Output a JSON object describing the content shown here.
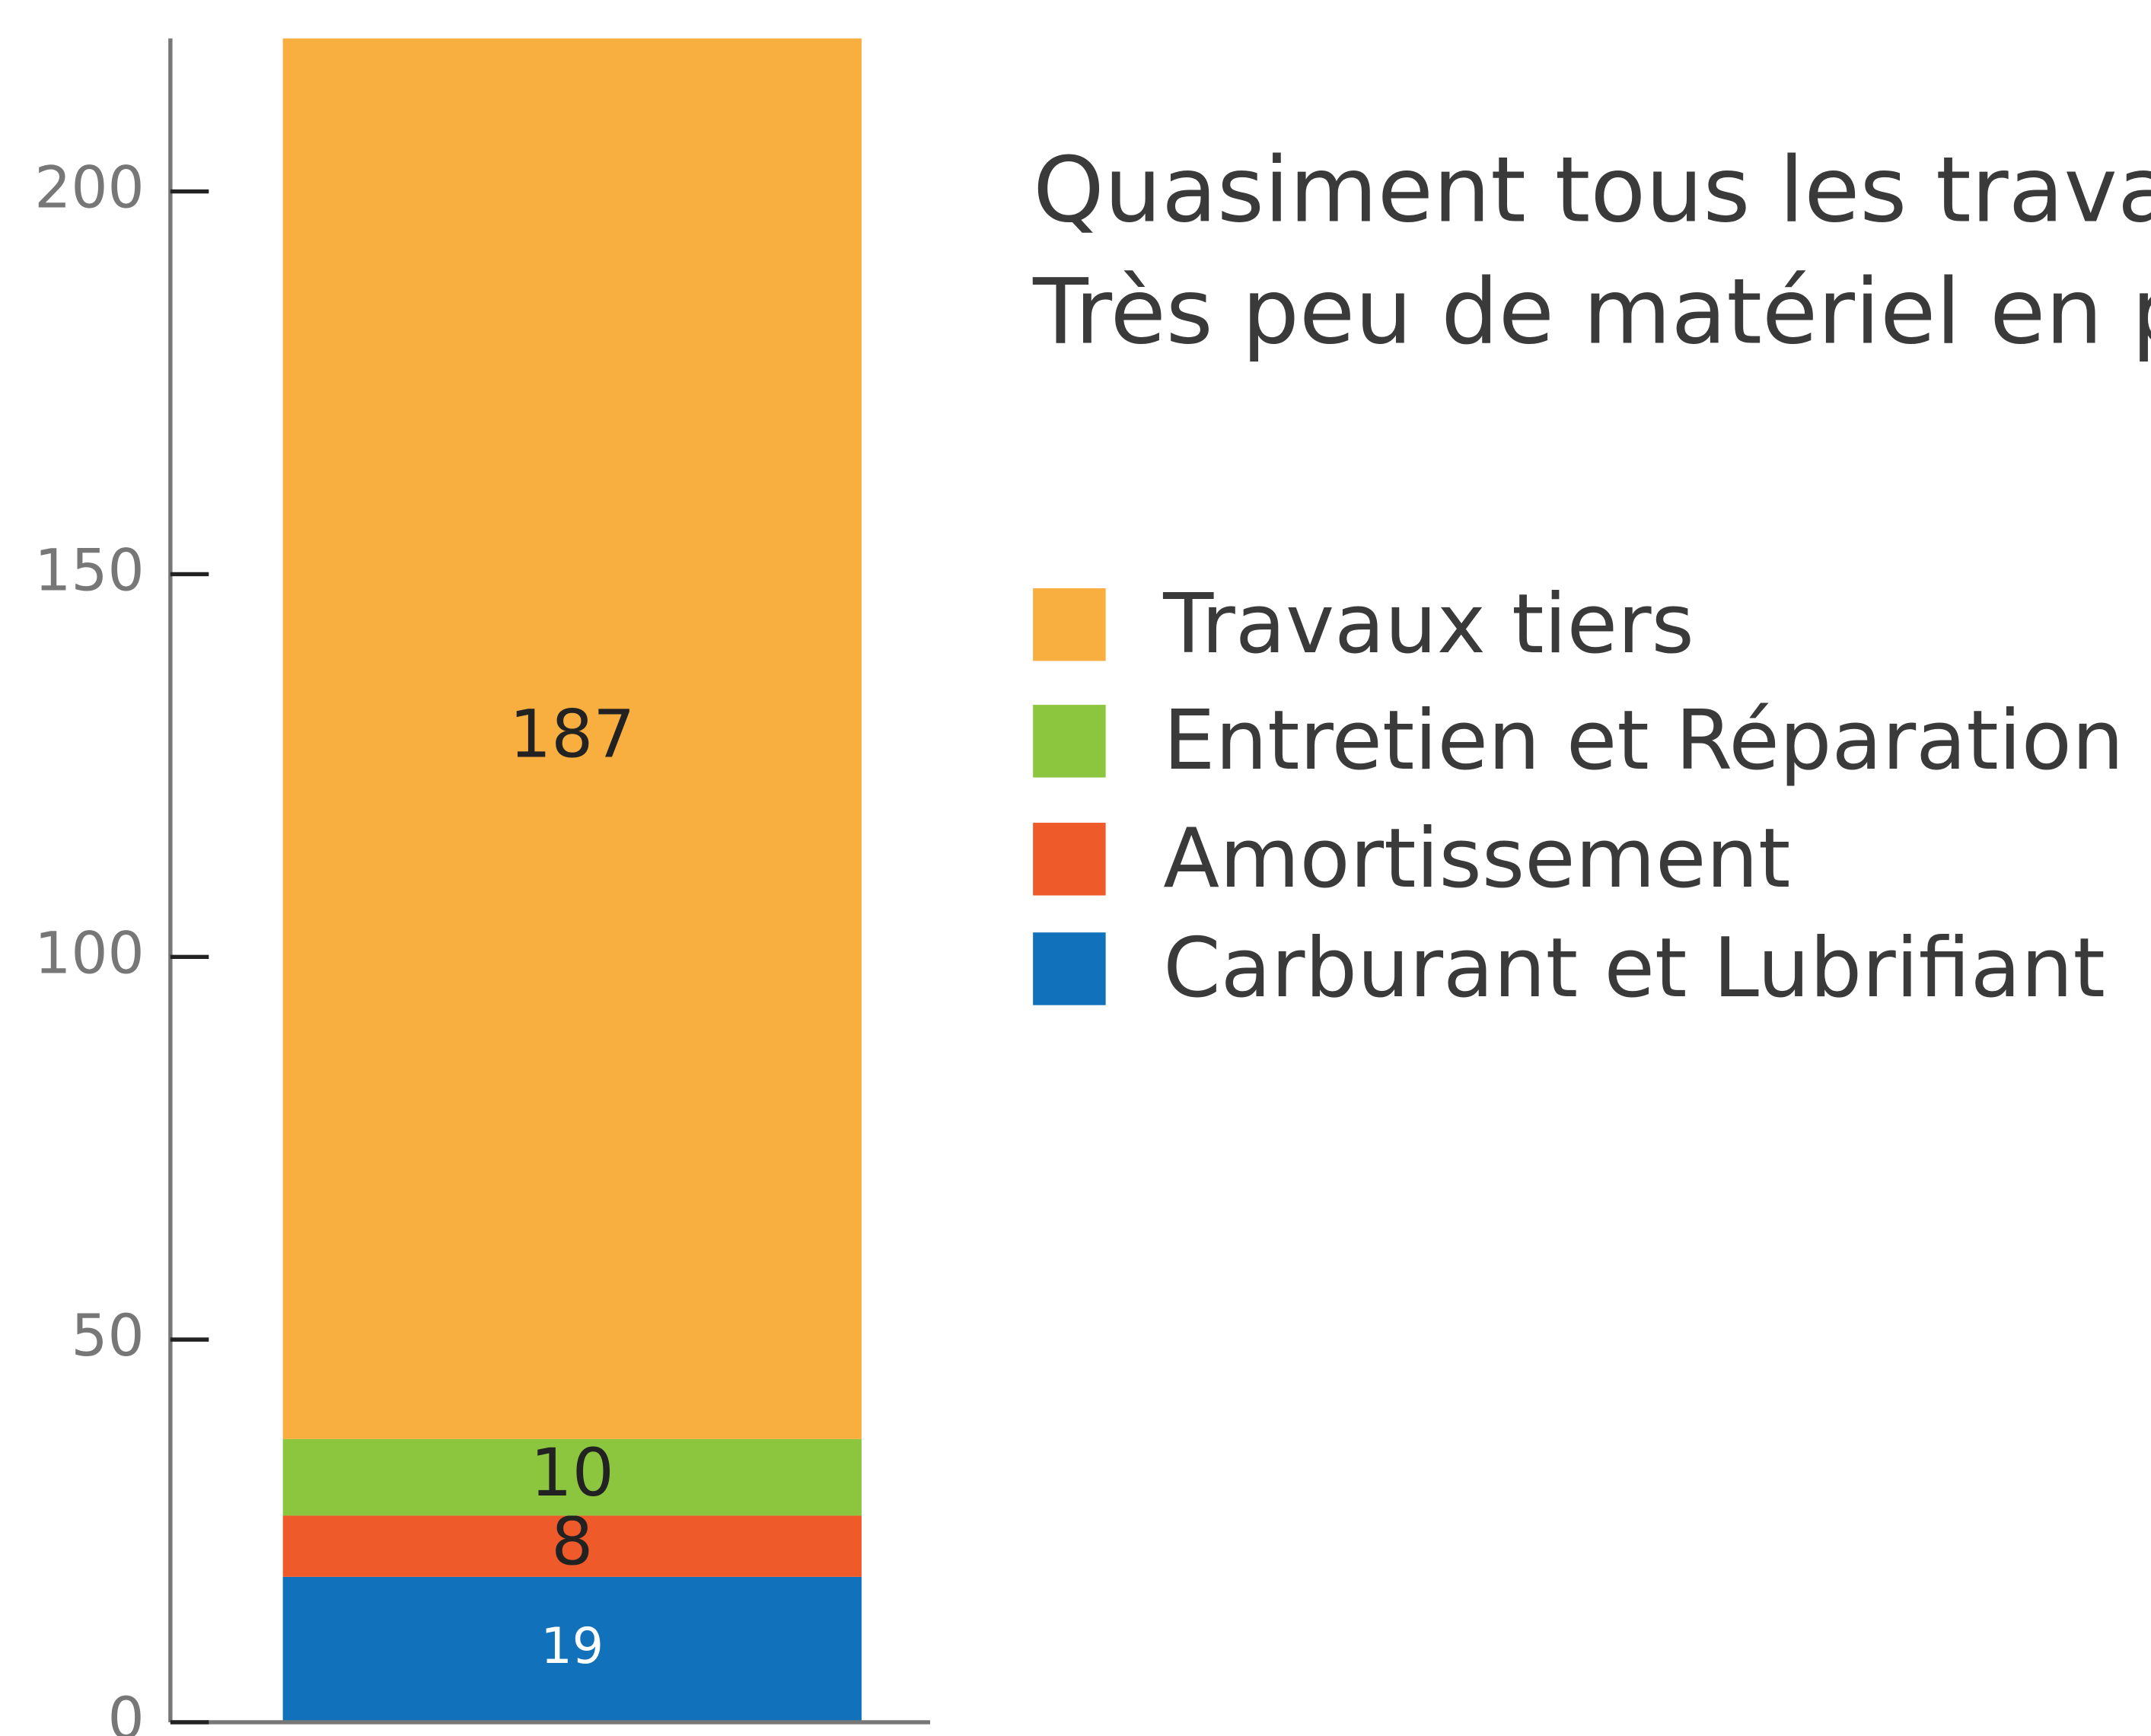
{
  "chart_data": {
    "type": "stacked_bar",
    "annotations": [
      "Quasiment tous les travaux",
      "Très peu de matériel en pro"
    ],
    "categories": [
      null
    ],
    "series": [
      {
        "name": "Carburant et Lubrifiant",
        "color": "#1172bb",
        "label_color": "#ffffff",
        "values": [
          19
        ]
      },
      {
        "name": "Amortissement",
        "color": "#ef5a2a",
        "label_color": "#222222",
        "values": [
          8
        ]
      },
      {
        "name": "Entretien et Réparation",
        "color": "#8cc63f",
        "label_color": "#222222",
        "values": [
          10
        ]
      },
      {
        "name": "Travaux tiers",
        "color": "#f9ae40",
        "label_color": "#222222",
        "values": [
          187
        ]
      }
    ],
    "ylim": [
      0,
      220
    ],
    "yticks": [
      0,
      50,
      100,
      150,
      200
    ],
    "legend": "right"
  }
}
